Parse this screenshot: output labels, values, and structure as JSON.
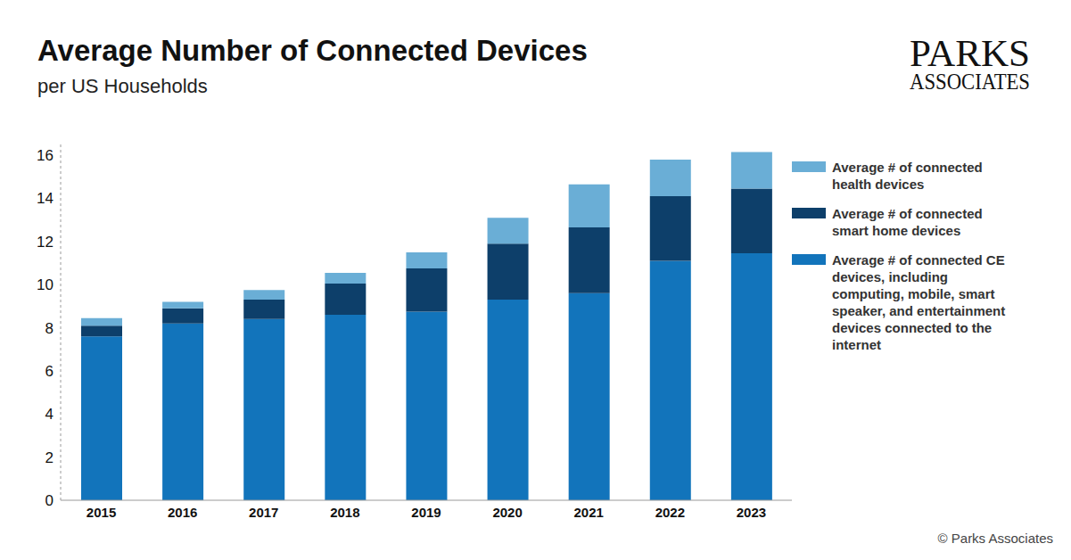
{
  "chart_data": {
    "type": "bar",
    "title": "Average Number of Connected Devices",
    "subtitle": "per US Households",
    "logo": [
      "PARKS",
      "ASSOCIATES"
    ],
    "source": "© Parks Associates",
    "categories": [
      "2015",
      "2016",
      "2017",
      "2018",
      "2019",
      "2020",
      "2021",
      "2022",
      "2023"
    ],
    "series": [
      {
        "name": "Average # of connected CE devices, including computing, mobile, smart speaker, and entertainment devices connected to the internet",
        "color": "#1274bb",
        "values": [
          7.6,
          8.2,
          8.4,
          8.6,
          8.75,
          9.3,
          9.6,
          11.1,
          11.45
        ]
      },
      {
        "name": "Average # of connected smart home devices",
        "color": "#0d3f6a",
        "values": [
          0.5,
          0.7,
          0.9,
          1.45,
          2.0,
          2.6,
          3.05,
          3.0,
          3.0
        ]
      },
      {
        "name": "Average # of connected health devices",
        "color": "#6aaed6",
        "values": [
          0.35,
          0.3,
          0.45,
          0.5,
          0.75,
          1.2,
          2.0,
          1.7,
          1.7
        ]
      }
    ],
    "ylim": [
      0,
      16.5
    ],
    "yticks": [
      0,
      2,
      4,
      6,
      8,
      10,
      12,
      14,
      16
    ],
    "stacked": true,
    "grid": false,
    "legend": "right"
  }
}
